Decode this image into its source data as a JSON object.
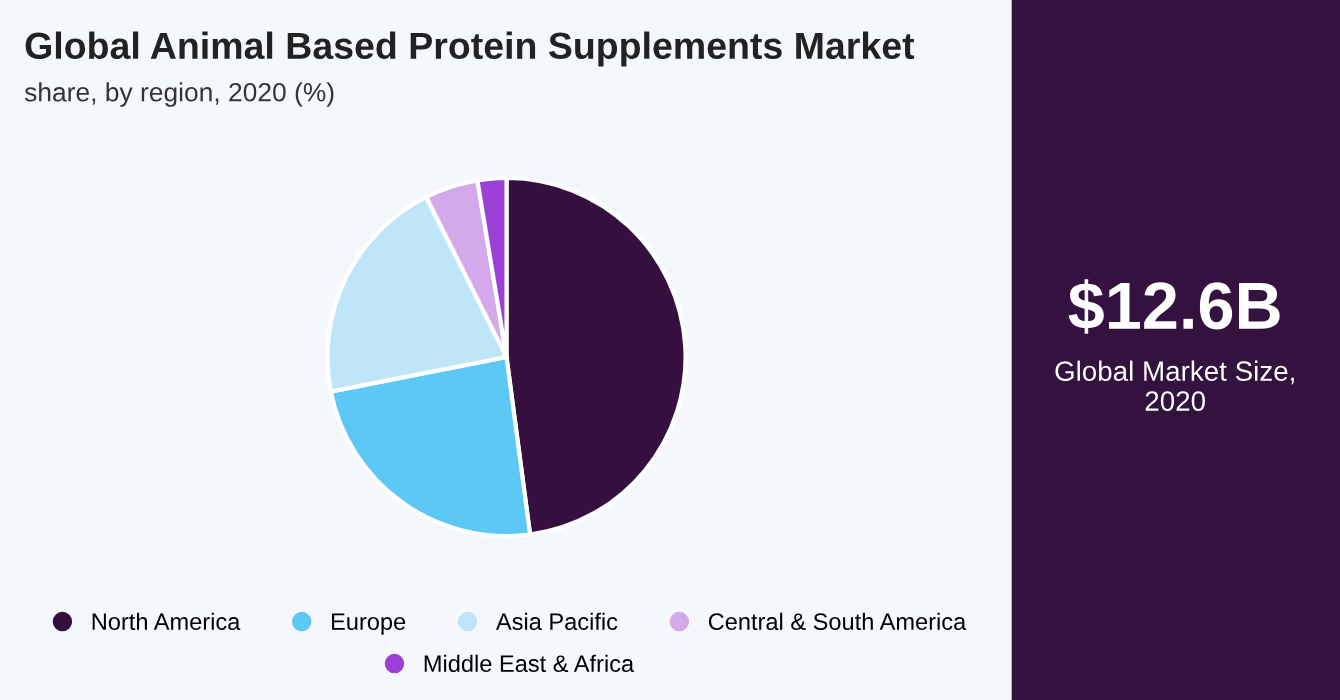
{
  "chart_data": {
    "type": "pie",
    "title": "Global Animal Based Protein Supplements Market",
    "subtitle": "share, by region, 2020 (%)",
    "categories": [
      "North America",
      "Europe",
      "Asia Pacific",
      "Central & South America",
      "Middle East & Africa"
    ],
    "values": [
      47.9,
      24.0,
      20.7,
      4.8,
      2.6
    ],
    "colors": [
      "#35103f",
      "#5bc8f5",
      "#bfe6f8",
      "#d4a9eb",
      "#9b3fd6"
    ],
    "legend": "bottom",
    "annotations": [
      "$12.6B",
      "Global Market Size, 2020"
    ]
  }
}
